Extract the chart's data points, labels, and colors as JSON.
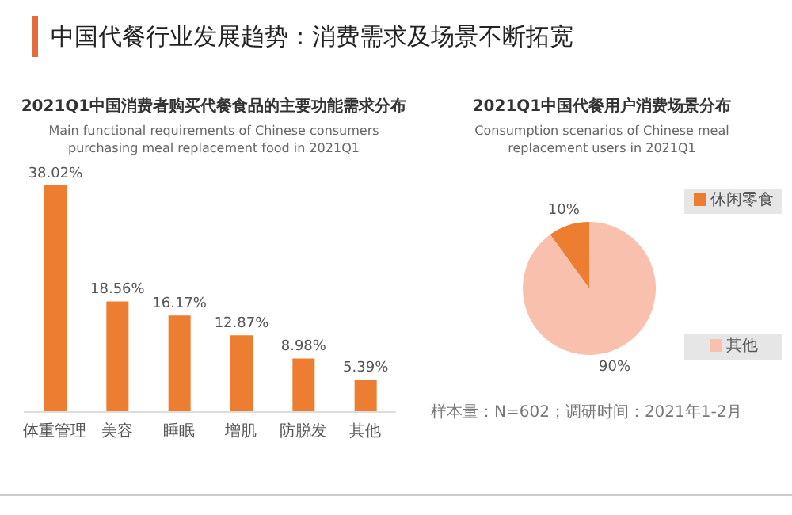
{
  "chart_data": [
    {
      "type": "bar",
      "title": "2021Q1中国消费者购买代餐食品的主要功能需求分布",
      "subtitle": "Main functional requirements of Chinese consumers purchasing meal replacement food in 2021Q1",
      "annotations": [
        "中国代餐行业发展趋势：消费需求及场景不断拓宽"
      ],
      "categories": [
        "体重管理",
        "美容",
        "睡眠",
        "增肌",
        "防脱发",
        "其他"
      ],
      "values": [
        38.02,
        18.56,
        16.17,
        12.87,
        8.98,
        5.39
      ],
      "value_labels": [
        "38.02%",
        "18.56%",
        "16.17%",
        "12.87%",
        "8.98%",
        "5.39%"
      ],
      "color": "#ed7d31"
    },
    {
      "type": "pie",
      "title": "2021Q1中国代餐用户消费场景分布",
      "subtitle": "Consumption scenarios of Chinese meal replacement users in  2021Q1",
      "annotations": [
        "样本量：N=602；调研时间：2021年1-2月"
      ],
      "categories": [
        "休闲零食",
        "其他"
      ],
      "values": [
        10,
        90
      ],
      "value_labels": [
        "10%",
        "90%"
      ],
      "colors": [
        "#ed7d31",
        "#f9c0ad"
      ],
      "legend": "right"
    }
  ]
}
